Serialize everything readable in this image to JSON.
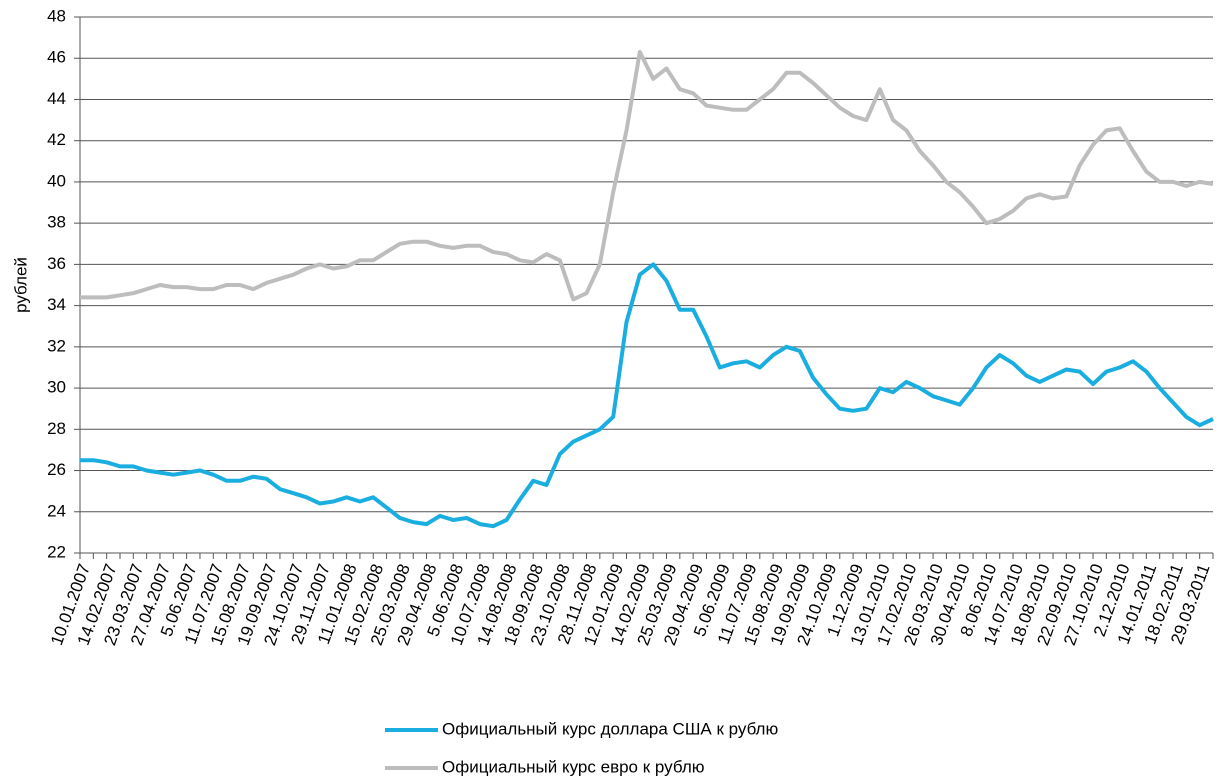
{
  "chart_data": {
    "type": "line",
    "y_label": "рублей",
    "categories": [
      "10.01.2007",
      null,
      "14.02.2007",
      null,
      "23.03.2007",
      null,
      "27.04.2007",
      null,
      "5.06.2007",
      null,
      "11.07.2007",
      null,
      "15.08.2007",
      null,
      "19.09.2007",
      null,
      "24.10.2007",
      null,
      "29.11.2007",
      null,
      "11.01.2008",
      null,
      "15.02.2008",
      null,
      "25.03.2008",
      null,
      "29.04.2008",
      null,
      "5.06.2008",
      null,
      "10.07.2008",
      null,
      "14.08.2008",
      null,
      "18.09.2008",
      null,
      "23.10.2008",
      null,
      "28.11.2008",
      null,
      "12.01.2009",
      null,
      "14.02.2009",
      null,
      "25.03.2009",
      null,
      "29.04.2009",
      null,
      "5.06.2009",
      null,
      "11.07.2009",
      null,
      "15.08.2009",
      null,
      "19.09.2009",
      null,
      "24.10.2009",
      null,
      "1.12.2009",
      null,
      "13.01.2010",
      null,
      "17.02.2010",
      null,
      "26.03.2010",
      null,
      "30.04.2010",
      null,
      "8.06.2010",
      null,
      "14.07.2010",
      null,
      "18.08.2010",
      null,
      "22.09.2010",
      null,
      "27.10.2010",
      null,
      "2.12.2010",
      null,
      "14.01.2011",
      null,
      "18.02.2011",
      null,
      "29.03.2011",
      null
    ],
    "series": [
      {
        "name": "Официальный курс доллара США к рублю",
        "color": "#1aaee0",
        "values": [
          26.5,
          26.5,
          26.4,
          26.2,
          26.2,
          26.0,
          25.9,
          25.8,
          25.9,
          26.0,
          25.8,
          25.5,
          25.5,
          25.7,
          25.6,
          25.1,
          24.9,
          24.7,
          24.4,
          24.5,
          24.7,
          24.5,
          24.7,
          24.2,
          23.7,
          23.5,
          23.4,
          23.8,
          23.6,
          23.7,
          23.4,
          23.3,
          23.6,
          24.6,
          25.5,
          25.3,
          26.8,
          27.4,
          27.7,
          28.0,
          28.6,
          33.2,
          35.5,
          36.0,
          35.2,
          33.8,
          33.8,
          32.5,
          31.0,
          31.2,
          31.3,
          31.0,
          31.6,
          32.0,
          31.8,
          30.5,
          29.7,
          29.0,
          28.9,
          29.0,
          30.0,
          29.8,
          30.3,
          30.0,
          29.6,
          29.4,
          29.2,
          30.0,
          31.0,
          31.6,
          31.2,
          30.6,
          30.3,
          30.6,
          30.9,
          30.8,
          30.2,
          30.8,
          31.0,
          31.3,
          30.8,
          30.0,
          29.3,
          28.6,
          28.2,
          28.5
        ]
      },
      {
        "name": "Официальный курс евро к рублю",
        "color": "#bdbdbd",
        "values": [
          34.4,
          34.4,
          34.4,
          34.5,
          34.6,
          34.8,
          35.0,
          34.9,
          34.9,
          34.8,
          34.8,
          35.0,
          35.0,
          34.8,
          35.1,
          35.3,
          35.5,
          35.8,
          36.0,
          35.8,
          35.9,
          36.2,
          36.2,
          36.6,
          37.0,
          37.1,
          37.1,
          36.9,
          36.8,
          36.9,
          36.9,
          36.6,
          36.5,
          36.2,
          36.1,
          36.5,
          36.2,
          34.3,
          34.6,
          36.0,
          39.5,
          42.5,
          46.3,
          45.0,
          45.5,
          44.5,
          44.3,
          43.7,
          43.6,
          43.5,
          43.5,
          44.0,
          44.5,
          45.3,
          45.3,
          44.8,
          44.2,
          43.6,
          43.2,
          43.0,
          44.5,
          43.0,
          42.5,
          41.5,
          40.8,
          40.0,
          39.5,
          38.8,
          38.0,
          38.2,
          38.6,
          39.2,
          39.4,
          39.2,
          39.3,
          40.8,
          41.8,
          42.5,
          42.6,
          41.5,
          40.5,
          40.0,
          40.0,
          39.8,
          40.0,
          39.9
        ]
      }
    ],
    "ylim": [
      22,
      48
    ],
    "yticks": [
      22,
      24,
      26,
      28,
      30,
      32,
      34,
      36,
      38,
      40,
      42,
      44,
      46,
      48
    ],
    "grid": true,
    "legend": "bottom"
  }
}
